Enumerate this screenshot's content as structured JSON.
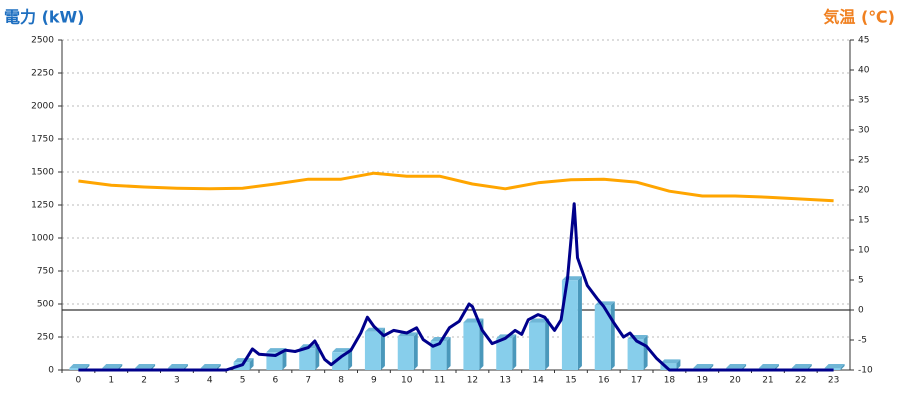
{
  "chart_data": {
    "type": "bar",
    "title": "電力 (kW)",
    "y2_title": "気温 (℃)",
    "categories": [
      "0",
      "1",
      "2",
      "3",
      "4",
      "5",
      "6",
      "7",
      "8",
      "9",
      "10",
      "11",
      "12",
      "13",
      "14",
      "15",
      "16",
      "17",
      "18",
      "19",
      "20",
      "21",
      "22",
      "23"
    ],
    "ylim": [
      0,
      2500
    ],
    "yticks": [
      0,
      250,
      500,
      750,
      1000,
      1250,
      1500,
      1750,
      2000,
      2250,
      2500
    ],
    "y2lim": [
      -10,
      45
    ],
    "y2ticks": [
      -10,
      -5,
      0,
      5,
      10,
      15,
      20,
      25,
      30,
      35,
      40,
      45
    ],
    "grid": true,
    "series": [
      {
        "type": "bar",
        "color": "#87ceeb",
        "values": [
          15,
          15,
          15,
          15,
          15,
          60,
          135,
          165,
          135,
          290,
          255,
          220,
          360,
          240,
          360,
          680,
          490,
          235,
          50,
          15,
          15,
          15,
          15,
          15
        ]
      },
      {
        "type": "line",
        "color": "#00008b",
        "x": [
          0,
          4.5,
          5,
          5.3,
          5.5,
          6,
          6.3,
          6.6,
          7,
          7.2,
          7.5,
          7.7,
          8,
          8.3,
          8.6,
          8.8,
          9,
          9.3,
          9.6,
          10,
          10.3,
          10.5,
          10.8,
          11,
          11.3,
          11.6,
          11.9,
          12,
          12.3,
          12.6,
          13,
          13.3,
          13.5,
          13.7,
          14,
          14.2,
          14.5,
          14.7,
          14.9,
          15.1,
          15.2,
          15.5,
          15.8,
          16,
          16.3,
          16.6,
          16.8,
          17,
          17.3,
          17.6,
          18,
          23
        ],
        "values": [
          0,
          0,
          40,
          160,
          120,
          110,
          150,
          140,
          170,
          220,
          80,
          40,
          100,
          150,
          280,
          400,
          330,
          260,
          300,
          280,
          320,
          230,
          180,
          200,
          320,
          370,
          500,
          480,
          300,
          200,
          240,
          300,
          270,
          380,
          420,
          400,
          300,
          380,
          700,
          1260,
          850,
          640,
          540,
          480,
          360,
          250,
          280,
          220,
          180,
          90,
          0,
          0
        ]
      },
      {
        "type": "line",
        "axis": "y2",
        "color": "#ffa500",
        "values": [
          21.5,
          20.8,
          20.5,
          20.3,
          20.2,
          20.3,
          21,
          21.8,
          21.8,
          22.8,
          22.3,
          22.3,
          21,
          20.2,
          21.2,
          21.7,
          21.8,
          21.3,
          19.8,
          19,
          19,
          18.8,
          18.5,
          18.2
        ]
      }
    ]
  }
}
